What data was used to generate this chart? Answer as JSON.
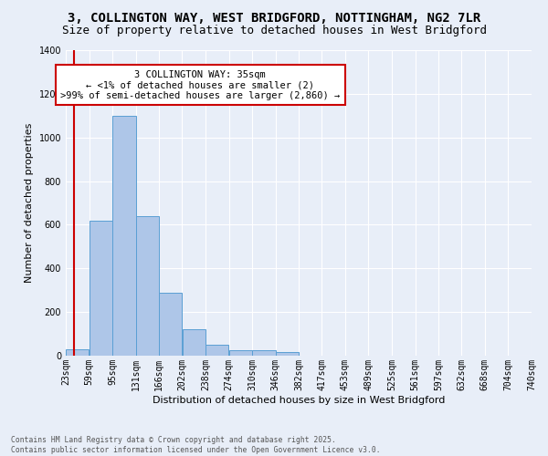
{
  "title": "3, COLLINGTON WAY, WEST BRIDGFORD, NOTTINGHAM, NG2 7LR",
  "subtitle": "Size of property relative to detached houses in West Bridgford",
  "xlabel": "Distribution of detached houses by size in West Bridgford",
  "ylabel": "Number of detached properties",
  "bar_values": [
    30,
    620,
    1100,
    640,
    290,
    120,
    50,
    25,
    25,
    15,
    0,
    0,
    0,
    0,
    0,
    0,
    0,
    0,
    0,
    0
  ],
  "bin_edges": [
    23,
    59,
    95,
    131,
    166,
    202,
    238,
    274,
    310,
    346,
    382,
    417,
    453,
    489,
    525,
    561,
    597,
    632,
    668,
    704,
    740
  ],
  "tick_labels": [
    "23sqm",
    "59sqm",
    "95sqm",
    "131sqm",
    "166sqm",
    "202sqm",
    "238sqm",
    "274sqm",
    "310sqm",
    "346sqm",
    "382sqm",
    "417sqm",
    "453sqm",
    "489sqm",
    "525sqm",
    "561sqm",
    "597sqm",
    "632sqm",
    "668sqm",
    "704sqm",
    "740sqm"
  ],
  "bar_color": "#aec6e8",
  "bar_edge_color": "#5a9fd4",
  "bg_color": "#e8eef8",
  "grid_color": "#ffffff",
  "property_line_color": "#cc0000",
  "property_line_x": 35,
  "annotation_text": "3 COLLINGTON WAY: 35sqm\n← <1% of detached houses are smaller (2)\n>99% of semi-detached houses are larger (2,860) →",
  "annotation_box_color": "#ffffff",
  "annotation_box_edge": "#cc0000",
  "footer": "Contains HM Land Registry data © Crown copyright and database right 2025.\nContains public sector information licensed under the Open Government Licence v3.0.",
  "ylim": [
    0,
    1400
  ],
  "yticks": [
    0,
    200,
    400,
    600,
    800,
    1000,
    1200,
    1400
  ],
  "title_fontsize": 10,
  "subtitle_fontsize": 9,
  "label_fontsize": 8,
  "tick_fontsize": 7,
  "annot_fontsize": 7.5,
  "footer_fontsize": 5.8
}
